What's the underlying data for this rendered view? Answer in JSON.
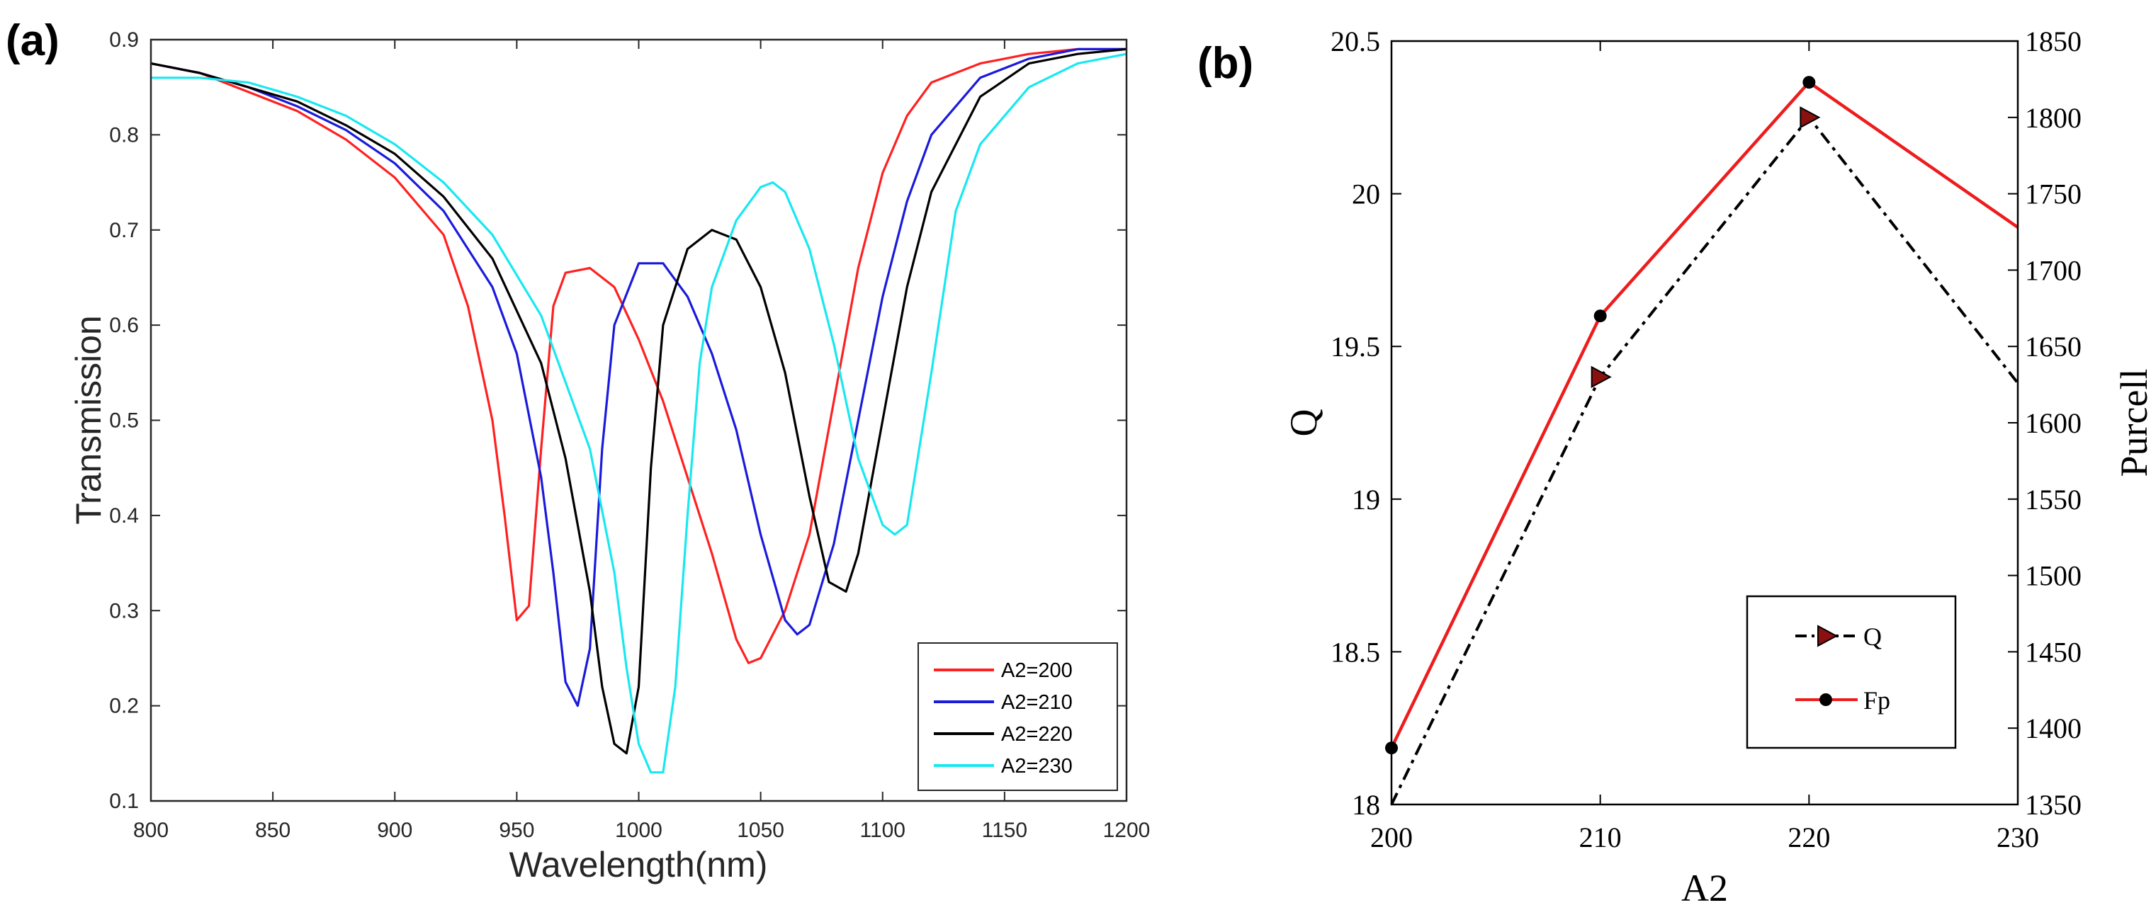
{
  "chart_data": [
    {
      "panel_label": "(a)",
      "type": "line",
      "title": "",
      "xlabel": "Wavelength(nm)",
      "ylabel": "Transmission",
      "xlim": [
        800,
        1200
      ],
      "ylim": [
        0.1,
        0.9
      ],
      "xticks": [
        800,
        850,
        900,
        950,
        1000,
        1050,
        1100,
        1150,
        1200
      ],
      "yticks": [
        0.1,
        0.2,
        0.3,
        0.4,
        0.5,
        0.6,
        0.7,
        0.8,
        0.9
      ],
      "xtick_labels": [
        "800",
        "850",
        "900",
        "950",
        "1000",
        "1050",
        "1100",
        "1150",
        "1200"
      ],
      "ytick_labels": [
        "0.1",
        "0.2",
        "0.3",
        "0.4",
        "0.5",
        "0.6",
        "0.7",
        "0.8",
        "0.9"
      ],
      "grid": false,
      "legend_position": "bottom-right",
      "series": [
        {
          "name": "A2=200",
          "color": "#ff2020",
          "x": [
            800,
            820,
            840,
            860,
            880,
            900,
            920,
            930,
            940,
            945,
            950,
            955,
            960,
            965,
            970,
            980,
            990,
            1000,
            1010,
            1020,
            1030,
            1040,
            1045,
            1050,
            1060,
            1070,
            1080,
            1090,
            1100,
            1110,
            1120,
            1140,
            1160,
            1180,
            1200
          ],
          "y": [
            0.875,
            0.865,
            0.845,
            0.825,
            0.795,
            0.755,
            0.695,
            0.62,
            0.5,
            0.4,
            0.29,
            0.305,
            0.47,
            0.62,
            0.655,
            0.66,
            0.64,
            0.585,
            0.52,
            0.44,
            0.36,
            0.27,
            0.245,
            0.25,
            0.3,
            0.38,
            0.52,
            0.66,
            0.76,
            0.82,
            0.855,
            0.875,
            0.885,
            0.89,
            0.89
          ]
        },
        {
          "name": "A2=210",
          "color": "#1a1adc",
          "x": [
            800,
            820,
            840,
            860,
            880,
            900,
            920,
            940,
            950,
            960,
            965,
            970,
            975,
            980,
            985,
            990,
            1000,
            1010,
            1020,
            1030,
            1040,
            1050,
            1060,
            1065,
            1070,
            1080,
            1090,
            1100,
            1110,
            1120,
            1140,
            1160,
            1180,
            1200
          ],
          "y": [
            0.875,
            0.865,
            0.85,
            0.83,
            0.805,
            0.77,
            0.72,
            0.64,
            0.57,
            0.44,
            0.34,
            0.225,
            0.2,
            0.26,
            0.47,
            0.6,
            0.665,
            0.665,
            0.63,
            0.57,
            0.49,
            0.38,
            0.29,
            0.275,
            0.285,
            0.37,
            0.5,
            0.63,
            0.73,
            0.8,
            0.86,
            0.88,
            0.89,
            0.89
          ]
        },
        {
          "name": "A2=220",
          "color": "#000000",
          "x": [
            800,
            820,
            840,
            860,
            880,
            900,
            920,
            940,
            960,
            970,
            980,
            985,
            990,
            995,
            1000,
            1005,
            1010,
            1020,
            1030,
            1040,
            1050,
            1060,
            1070,
            1078,
            1085,
            1090,
            1100,
            1110,
            1120,
            1140,
            1160,
            1180,
            1200
          ],
          "y": [
            0.875,
            0.865,
            0.85,
            0.835,
            0.81,
            0.78,
            0.735,
            0.67,
            0.56,
            0.46,
            0.32,
            0.22,
            0.16,
            0.15,
            0.22,
            0.45,
            0.6,
            0.68,
            0.7,
            0.69,
            0.64,
            0.55,
            0.42,
            0.33,
            0.32,
            0.36,
            0.5,
            0.64,
            0.74,
            0.84,
            0.875,
            0.885,
            0.89
          ]
        },
        {
          "name": "A2=230",
          "color": "#18e8f0",
          "x": [
            800,
            820,
            840,
            860,
            880,
            900,
            920,
            940,
            960,
            980,
            990,
            995,
            1000,
            1005,
            1010,
            1015,
            1020,
            1025,
            1030,
            1040,
            1050,
            1055,
            1060,
            1070,
            1080,
            1090,
            1100,
            1105,
            1110,
            1120,
            1130,
            1140,
            1160,
            1180,
            1200
          ],
          "y": [
            0.86,
            0.86,
            0.855,
            0.84,
            0.82,
            0.79,
            0.75,
            0.695,
            0.61,
            0.47,
            0.34,
            0.24,
            0.16,
            0.13,
            0.13,
            0.22,
            0.4,
            0.56,
            0.64,
            0.71,
            0.745,
            0.75,
            0.74,
            0.68,
            0.58,
            0.46,
            0.39,
            0.38,
            0.39,
            0.55,
            0.72,
            0.79,
            0.85,
            0.875,
            0.885
          ]
        }
      ]
    },
    {
      "panel_label": "(b)",
      "type": "line",
      "title": "",
      "xlabel": "A2",
      "ylabel": "Q",
      "ylabel_right": "Purcell",
      "xlim": [
        200,
        230
      ],
      "ylim": [
        18,
        20.5
      ],
      "ylim_right": [
        1350,
        1850
      ],
      "xticks": [
        200,
        210,
        220,
        230
      ],
      "yticks": [
        18,
        18.5,
        19,
        19.5,
        20,
        20.5
      ],
      "yticks_right": [
        1350,
        1400,
        1450,
        1500,
        1550,
        1600,
        1650,
        1700,
        1750,
        1800,
        1850
      ],
      "xtick_labels": [
        "200",
        "210",
        "220",
        "230"
      ],
      "ytick_labels": [
        "18",
        "18.5",
        "19",
        "19.5",
        "20",
        "20.5"
      ],
      "ytick_labels_right": [
        "1350",
        "1400",
        "1450",
        "1500",
        "1550",
        "1600",
        "1650",
        "1700",
        "1750",
        "1800",
        "1850"
      ],
      "grid": false,
      "legend_position": "bottom-right",
      "series": [
        {
          "name": "Q",
          "axis": "left",
          "color": "#000000",
          "marker_color": "#8b1010",
          "line_style": "dash-dot",
          "marker": "triangle-right",
          "x": [
            200,
            210,
            220,
            230
          ],
          "y": [
            18.0,
            19.4,
            20.25,
            19.38
          ]
        },
        {
          "name": "Fp",
          "axis": "right",
          "color": "#ee1c1c",
          "marker_color": "#000000",
          "line_style": "solid",
          "marker": "circle",
          "x": [
            200,
            210,
            220,
            230
          ],
          "y": [
            1387,
            1670,
            1823,
            1728
          ]
        }
      ]
    }
  ]
}
